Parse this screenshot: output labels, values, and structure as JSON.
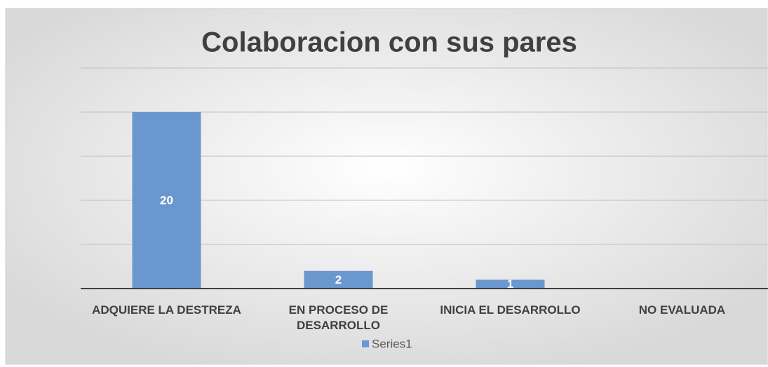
{
  "chart_data": {
    "type": "bar",
    "title": "Colaboracion con sus pares",
    "categories": [
      "ADQUIERE LA DESTREZA",
      "EN PROCESO DE DESARROLLO",
      "INICIA EL DESARROLLO",
      "NO EVALUADA"
    ],
    "series": [
      {
        "name": "Series1",
        "color": "#6b97cf",
        "values": [
          20,
          2,
          1,
          null
        ]
      }
    ],
    "ylim": [
      0,
      25
    ],
    "yticks": [
      0,
      5,
      10,
      15,
      20,
      25
    ],
    "grid": true
  }
}
